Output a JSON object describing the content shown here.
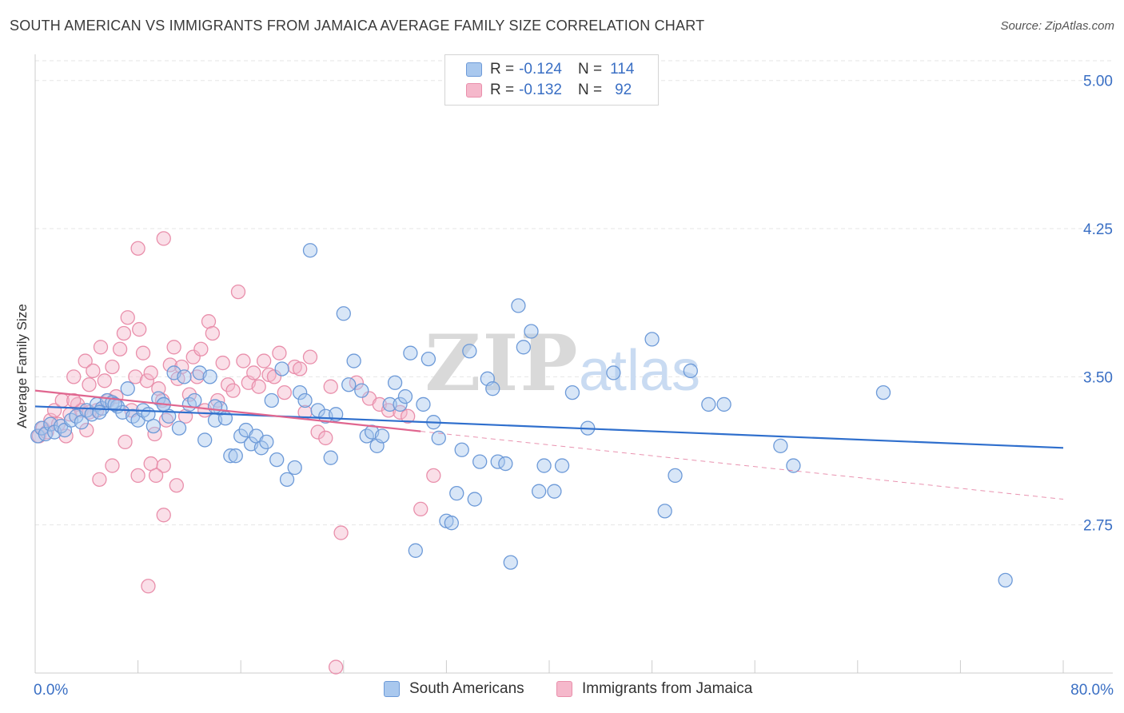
{
  "title": "SOUTH AMERICAN VS IMMIGRANTS FROM JAMAICA AVERAGE FAMILY SIZE CORRELATION CHART",
  "source": "Source: ZipAtlas.com",
  "watermark": {
    "zip": "ZIP",
    "atlas": "atlas"
  },
  "legend_top": {
    "rows": [
      {
        "r_label": "R =",
        "r_value": "-0.124",
        "n_label": "N =",
        "n_value": "114"
      },
      {
        "r_label": "R =",
        "r_value": "-0.132",
        "n_label": "N =",
        "n_value": "92"
      }
    ]
  },
  "legend_bottom": {
    "south": "South Americans",
    "jamaica": "Immigrants from Jamaica"
  },
  "colors": {
    "blue_fill": "#a9c8ee",
    "blue_stroke": "#6d9ad8",
    "blue_line": "#2f6fcd",
    "pink_fill": "#f5b8cb",
    "pink_stroke": "#e98fab",
    "pink_line": "#e0668f",
    "tick_label": "#3a6fc4",
    "grid": "#e6e6e6"
  },
  "chart_data": {
    "type": "scatter",
    "title": "SOUTH AMERICAN VS IMMIGRANTS FROM JAMAICA AVERAGE FAMILY SIZE CORRELATION CHART",
    "xlabel": "",
    "ylabel": "Average Family Size",
    "xlim": [
      0,
      80
    ],
    "ylim": [
      2.0,
      5.1
    ],
    "x_tick_labels": [
      {
        "x": 0,
        "label": "0.0%"
      },
      {
        "x": 80,
        "label": "80.0%"
      }
    ],
    "y_ticks": [
      {
        "y": 5.0,
        "label": "5.00"
      },
      {
        "y": 4.25,
        "label": "4.25"
      },
      {
        "y": 3.5,
        "label": "3.50"
      },
      {
        "y": 2.75,
        "label": "2.75"
      }
    ],
    "series": [
      {
        "name": "South Americans",
        "r": -0.124,
        "n": 114,
        "trend": {
          "x0": 0,
          "y0": 3.35,
          "x1": 80,
          "y1": 3.14
        },
        "points": [
          [
            0.2,
            3.2
          ],
          [
            0.5,
            3.24
          ],
          [
            0.8,
            3.21
          ],
          [
            1.2,
            3.26
          ],
          [
            1.5,
            3.22
          ],
          [
            2.0,
            3.25
          ],
          [
            2.3,
            3.23
          ],
          [
            2.8,
            3.28
          ],
          [
            3.2,
            3.3
          ],
          [
            3.6,
            3.27
          ],
          [
            4.0,
            3.33
          ],
          [
            4.4,
            3.31
          ],
          [
            4.8,
            3.36
          ],
          [
            5.2,
            3.34
          ],
          [
            5.6,
            3.38
          ],
          [
            6.0,
            3.37
          ],
          [
            6.4,
            3.35
          ],
          [
            6.8,
            3.32
          ],
          [
            7.2,
            3.44
          ],
          [
            7.6,
            3.3
          ],
          [
            8.0,
            3.28
          ],
          [
            8.4,
            3.33
          ],
          [
            8.8,
            3.31
          ],
          [
            9.2,
            3.25
          ],
          [
            9.6,
            3.39
          ],
          [
            10.0,
            3.36
          ],
          [
            10.4,
            3.3
          ],
          [
            10.8,
            3.52
          ],
          [
            11.2,
            3.24
          ],
          [
            11.6,
            3.5
          ],
          [
            12.0,
            3.36
          ],
          [
            12.4,
            3.38
          ],
          [
            12.8,
            3.52
          ],
          [
            13.2,
            3.18
          ],
          [
            13.6,
            3.5
          ],
          [
            14.0,
            3.28
          ],
          [
            14.4,
            3.34
          ],
          [
            14.8,
            3.29
          ],
          [
            15.2,
            3.1
          ],
          [
            15.6,
            3.1
          ],
          [
            16.0,
            3.2
          ],
          [
            16.4,
            3.23
          ],
          [
            16.8,
            3.16
          ],
          [
            17.2,
            3.2
          ],
          [
            17.6,
            3.14
          ],
          [
            18.0,
            3.17
          ],
          [
            18.4,
            3.38
          ],
          [
            18.8,
            3.08
          ],
          [
            19.2,
            3.54
          ],
          [
            19.6,
            2.98
          ],
          [
            20.2,
            3.04
          ],
          [
            20.6,
            3.42
          ],
          [
            21.0,
            3.38
          ],
          [
            21.4,
            4.14
          ],
          [
            22.0,
            3.33
          ],
          [
            22.6,
            3.3
          ],
          [
            23.0,
            3.09
          ],
          [
            23.4,
            3.31
          ],
          [
            24.0,
            3.82
          ],
          [
            24.4,
            3.46
          ],
          [
            24.8,
            3.58
          ],
          [
            25.4,
            3.43
          ],
          [
            25.8,
            3.2
          ],
          [
            26.2,
            3.22
          ],
          [
            26.6,
            3.15
          ],
          [
            27.0,
            3.2
          ],
          [
            27.6,
            3.36
          ],
          [
            28.0,
            3.47
          ],
          [
            28.4,
            3.36
          ],
          [
            28.8,
            3.4
          ],
          [
            29.2,
            3.62
          ],
          [
            29.6,
            2.62
          ],
          [
            30.2,
            3.36
          ],
          [
            30.6,
            3.59
          ],
          [
            31.0,
            3.27
          ],
          [
            31.4,
            3.19
          ],
          [
            32.0,
            2.77
          ],
          [
            32.4,
            2.76
          ],
          [
            32.8,
            2.91
          ],
          [
            33.2,
            3.13
          ],
          [
            33.8,
            3.63
          ],
          [
            34.2,
            2.88
          ],
          [
            34.6,
            3.07
          ],
          [
            35.2,
            3.49
          ],
          [
            35.6,
            3.44
          ],
          [
            36.0,
            3.07
          ],
          [
            36.6,
            3.06
          ],
          [
            37.0,
            2.56
          ],
          [
            37.6,
            3.86
          ],
          [
            38.0,
            3.65
          ],
          [
            38.6,
            3.73
          ],
          [
            39.2,
            2.92
          ],
          [
            39.6,
            3.05
          ],
          [
            40.4,
            2.92
          ],
          [
            41.0,
            3.05
          ],
          [
            41.8,
            3.42
          ],
          [
            43.0,
            3.24
          ],
          [
            45.0,
            3.52
          ],
          [
            48.0,
            3.69
          ],
          [
            49.0,
            2.82
          ],
          [
            49.8,
            3.0
          ],
          [
            51.0,
            3.53
          ],
          [
            52.4,
            3.36
          ],
          [
            53.6,
            3.36
          ],
          [
            58.0,
            3.15
          ],
          [
            59.0,
            3.05
          ],
          [
            66.0,
            3.42
          ],
          [
            75.5,
            2.47
          ],
          [
            5.0,
            3.32
          ],
          [
            6.2,
            3.36
          ],
          [
            10.0,
            3.36
          ],
          [
            14.0,
            3.35
          ]
        ]
      },
      {
        "name": "Immigrants from Jamaica",
        "r": -0.132,
        "n": 92,
        "trend": {
          "x0": 0,
          "y0": 3.43,
          "x1": 80,
          "y1": 2.88
        },
        "trend_solid_until_x": 30,
        "points": [
          [
            0.3,
            3.2
          ],
          [
            0.6,
            3.24
          ],
          [
            0.9,
            3.22
          ],
          [
            1.2,
            3.28
          ],
          [
            1.5,
            3.33
          ],
          [
            1.8,
            3.26
          ],
          [
            2.1,
            3.38
          ],
          [
            2.4,
            3.2
          ],
          [
            2.7,
            3.31
          ],
          [
            3.0,
            3.5
          ],
          [
            3.3,
            3.36
          ],
          [
            3.6,
            3.33
          ],
          [
            3.9,
            3.58
          ],
          [
            4.2,
            3.46
          ],
          [
            4.5,
            3.53
          ],
          [
            4.8,
            3.33
          ],
          [
            5.1,
            3.65
          ],
          [
            5.4,
            3.48
          ],
          [
            5.7,
            3.38
          ],
          [
            6.0,
            3.55
          ],
          [
            6.3,
            3.4
          ],
          [
            6.6,
            3.64
          ],
          [
            6.9,
            3.72
          ],
          [
            7.2,
            3.8
          ],
          [
            7.5,
            3.33
          ],
          [
            7.8,
            3.5
          ],
          [
            8.1,
            3.74
          ],
          [
            8.4,
            3.62
          ],
          [
            8.7,
            3.48
          ],
          [
            9.0,
            3.52
          ],
          [
            9.3,
            3.21
          ],
          [
            9.6,
            3.44
          ],
          [
            9.9,
            3.38
          ],
          [
            10.2,
            3.28
          ],
          [
            10.5,
            3.56
          ],
          [
            10.8,
            3.65
          ],
          [
            11.1,
            3.49
          ],
          [
            11.4,
            3.55
          ],
          [
            11.7,
            3.3
          ],
          [
            12.0,
            3.41
          ],
          [
            12.3,
            3.6
          ],
          [
            12.6,
            3.5
          ],
          [
            12.9,
            3.64
          ],
          [
            13.2,
            3.33
          ],
          [
            13.5,
            3.78
          ],
          [
            13.8,
            3.72
          ],
          [
            14.2,
            3.38
          ],
          [
            14.6,
            3.57
          ],
          [
            15.0,
            3.46
          ],
          [
            15.4,
            3.43
          ],
          [
            15.8,
            3.93
          ],
          [
            16.2,
            3.58
          ],
          [
            16.6,
            3.47
          ],
          [
            17.0,
            3.52
          ],
          [
            17.4,
            3.45
          ],
          [
            17.8,
            3.58
          ],
          [
            18.2,
            3.51
          ],
          [
            18.6,
            3.5
          ],
          [
            19.0,
            3.62
          ],
          [
            19.4,
            3.42
          ],
          [
            20.2,
            3.55
          ],
          [
            20.6,
            3.54
          ],
          [
            21.0,
            3.32
          ],
          [
            21.4,
            3.6
          ],
          [
            22.0,
            3.22
          ],
          [
            22.6,
            3.19
          ],
          [
            23.0,
            3.45
          ],
          [
            23.4,
            2.03
          ],
          [
            23.8,
            2.71
          ],
          [
            25.0,
            3.47
          ],
          [
            26.0,
            3.39
          ],
          [
            26.8,
            3.36
          ],
          [
            27.5,
            3.33
          ],
          [
            28.4,
            3.32
          ],
          [
            29.0,
            3.3
          ],
          [
            30.0,
            2.83
          ],
          [
            31.0,
            3.0
          ],
          [
            8.0,
            4.15
          ],
          [
            10.0,
            4.2
          ],
          [
            11.0,
            2.95
          ],
          [
            9.0,
            3.06
          ],
          [
            10.0,
            3.05
          ],
          [
            8.0,
            3.0
          ],
          [
            6.0,
            3.05
          ],
          [
            5.0,
            2.98
          ],
          [
            7.0,
            3.17
          ],
          [
            9.4,
            3.0
          ],
          [
            10.0,
            2.8
          ],
          [
            8.8,
            2.44
          ],
          [
            4.2,
            3.32
          ],
          [
            3.0,
            3.38
          ],
          [
            4.0,
            3.23
          ]
        ]
      }
    ]
  }
}
